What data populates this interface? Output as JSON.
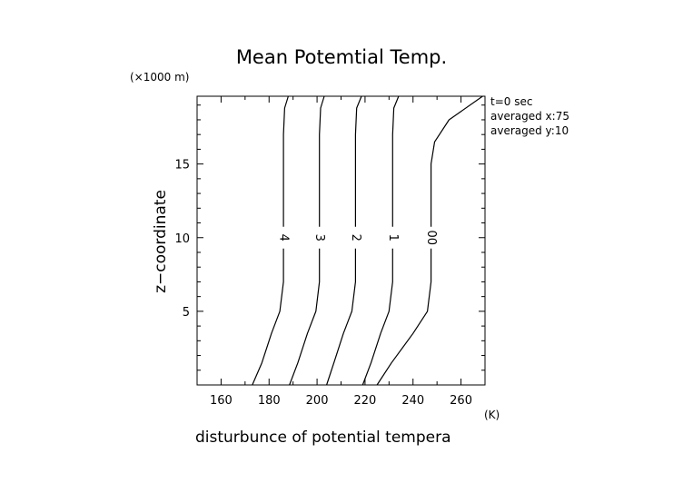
{
  "chart_data": {
    "type": "line",
    "title": "Mean Potemtial Temp.",
    "xlabel": "disturbunce of potential tempera",
    "xunit": "(K)",
    "ylabel": "z−coordinate",
    "yunit": "(×1000 m)",
    "xlim": [
      150,
      270
    ],
    "ylim": [
      0,
      19.6
    ],
    "xticks": [
      160,
      180,
      200,
      220,
      240,
      260
    ],
    "yticks": [
      5,
      10,
      15
    ],
    "grid": false,
    "annotations": [
      "t=0 sec",
      "averaged  x:75",
      "averaged  y:10"
    ],
    "series": [
      {
        "label": "4",
        "points": [
          [
            173,
            0
          ],
          [
            177,
            1.5
          ],
          [
            181,
            3.5
          ],
          [
            184.5,
            5
          ],
          [
            186,
            7
          ],
          [
            186,
            17
          ],
          [
            186.5,
            18.8
          ],
          [
            188,
            19.6
          ]
        ]
      },
      {
        "label": "3",
        "points": [
          [
            188.5,
            0
          ],
          [
            192,
            1.5
          ],
          [
            196,
            3.5
          ],
          [
            199.5,
            5
          ],
          [
            201,
            7
          ],
          [
            201,
            17
          ],
          [
            201.5,
            18.8
          ],
          [
            203,
            19.6
          ]
        ]
      },
      {
        "label": "2",
        "points": [
          [
            204,
            0
          ],
          [
            207,
            1.5
          ],
          [
            211,
            3.5
          ],
          [
            214.5,
            5
          ],
          [
            216,
            7
          ],
          [
            216,
            17
          ],
          [
            216.5,
            18.8
          ],
          [
            218.5,
            19.6
          ]
        ]
      },
      {
        "label": "1",
        "points": [
          [
            219,
            0
          ],
          [
            222.5,
            1.5
          ],
          [
            226.5,
            3.5
          ],
          [
            230,
            5
          ],
          [
            231.5,
            7
          ],
          [
            231.5,
            17
          ],
          [
            232,
            18.8
          ],
          [
            234,
            19.6
          ]
        ]
      },
      {
        "label": "00",
        "points": [
          [
            225,
            0
          ],
          [
            231,
            1.5
          ],
          [
            240,
            3.5
          ],
          [
            246,
            5
          ],
          [
            247.5,
            7
          ],
          [
            247.5,
            15
          ],
          [
            249,
            16.5
          ],
          [
            255,
            18
          ],
          [
            269,
            19.6
          ]
        ]
      }
    ]
  }
}
